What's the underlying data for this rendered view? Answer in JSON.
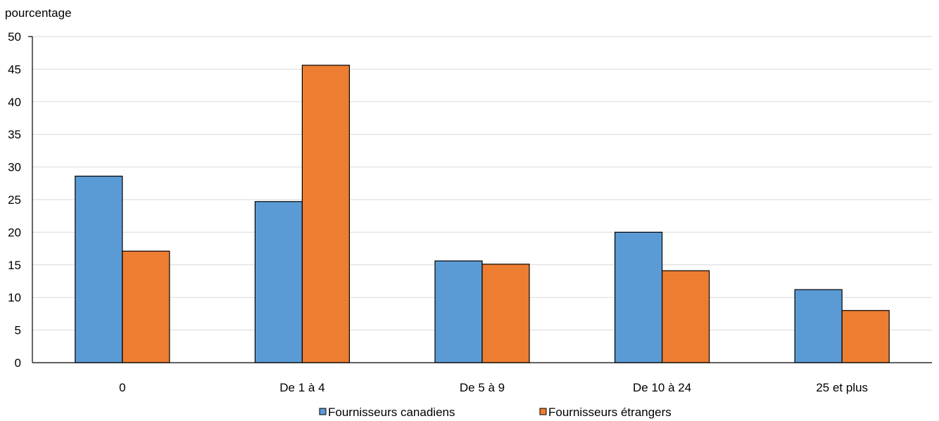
{
  "chart_data": {
    "type": "bar",
    "ylabel": "pourcentage",
    "categories": [
      "0",
      "De 1 à 4",
      "De 5 à 9",
      "De 10 à 24",
      "25 et plus"
    ],
    "ylim": [
      0,
      50
    ],
    "yticks": [
      0,
      5,
      10,
      15,
      20,
      25,
      30,
      35,
      40,
      45,
      50
    ],
    "grid": true,
    "legend_position": "bottom",
    "series": [
      {
        "name": "Fournisseurs canadiens",
        "color": "#5B9BD5",
        "values": [
          28.6,
          24.7,
          15.6,
          20.0,
          11.2
        ]
      },
      {
        "name": "Fournisseurs étrangers",
        "color": "#ED7D31",
        "values": [
          17.1,
          45.6,
          15.1,
          14.1,
          8.0
        ]
      }
    ]
  }
}
